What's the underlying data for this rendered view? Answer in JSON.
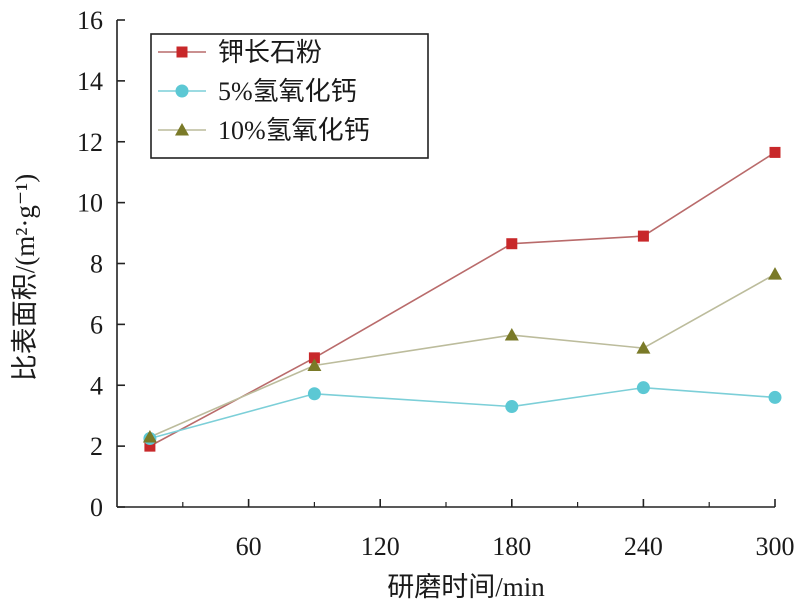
{
  "chart_data": {
    "type": "line",
    "xlabel": "研磨时间/min",
    "ylabel": "比表面积/(m²·g⁻¹)",
    "x_ticks": [
      60,
      120,
      180,
      240,
      300
    ],
    "y_ticks": [
      0,
      2,
      4,
      6,
      8,
      10,
      12,
      14,
      16
    ],
    "xlim": [
      0,
      300
    ],
    "ylim": [
      0,
      16
    ],
    "grid": false,
    "legend_position": "top-left",
    "x": [
      15,
      90,
      180,
      240,
      300
    ],
    "series": [
      {
        "name": "钾长石粉",
        "marker": "square",
        "color": "#c8282a",
        "line_color": "#b96b6b",
        "values": [
          2.0,
          4.9,
          8.65,
          8.9,
          11.65
        ]
      },
      {
        "name": "5%氢氧化钙",
        "marker": "circle",
        "color": "#5cc8d4",
        "line_color": "#7ccfd8",
        "values": [
          2.25,
          3.72,
          3.3,
          3.92,
          3.6
        ]
      },
      {
        "name": "10%氢氧化钙",
        "marker": "triangle",
        "color": "#7a7a28",
        "line_color": "#bcbc9c",
        "values": [
          2.3,
          4.65,
          5.65,
          5.22,
          7.65
        ]
      }
    ]
  }
}
